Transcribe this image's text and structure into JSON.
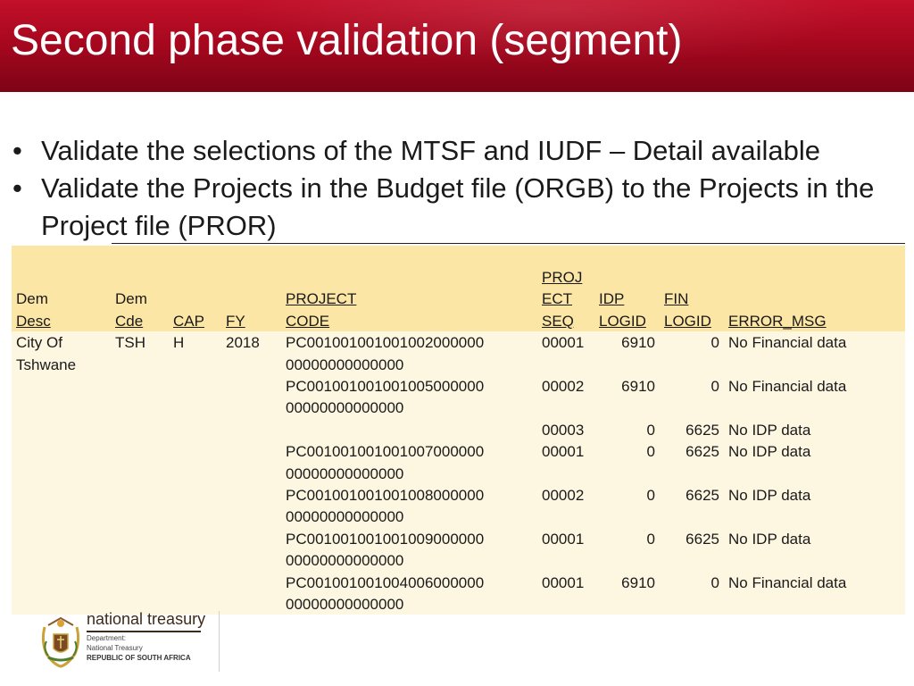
{
  "slide": {
    "title": "Second phase validation (segment)",
    "accent_color": "#a8081f"
  },
  "bullets": [
    "Validate the selections of the MTSF and IUDF – Detail available",
    "Validate the Projects in the Budget file  (ORGB) to the Projects in the Project file (PROR)"
  ],
  "bullet_glyph": "•",
  "table": {
    "header_color": "#fce6a5",
    "body_color": "#fdf6e1",
    "headers": {
      "dem_desc": [
        "Dem",
        "Desc"
      ],
      "dem_cde": [
        "Dem",
        "Cde"
      ],
      "cap": "CAP",
      "fy": "FY",
      "project_code": [
        "PROJECT",
        "CODE"
      ],
      "proj_ect_seq": [
        "PROJ",
        "ECT",
        "SEQ"
      ],
      "idp_logid": [
        "IDP",
        "LOGID"
      ],
      "fin_logid": [
        "FIN",
        "LOGID"
      ],
      "error_msg": "ERROR_MSG"
    },
    "rows": [
      {
        "dem_desc": [
          "City Of",
          "Tshwane"
        ],
        "dem_cde": "TSH",
        "cap": "H",
        "fy": "2018",
        "project_code": [
          "PC001001001001002000000",
          "00000000000000"
        ],
        "seq": "00001",
        "idp_logid": "6910",
        "fin_logid": "0",
        "error_msg": "No Financial data"
      },
      {
        "dem_desc": [
          "",
          ""
        ],
        "dem_cde": "",
        "cap": "",
        "fy": "",
        "project_code": [
          "PC001001001001005000000",
          "00000000000000"
        ],
        "seq": "00002",
        "idp_logid": "6910",
        "fin_logid": "0",
        "error_msg": "No Financial data"
      },
      {
        "dem_desc": [
          "",
          ""
        ],
        "dem_cde": "",
        "cap": "",
        "fy": "",
        "project_code": [
          "",
          ""
        ],
        "seq": "00003",
        "idp_logid": "0",
        "fin_logid": "6625",
        "error_msg": "No IDP data"
      },
      {
        "dem_desc": [
          "",
          ""
        ],
        "dem_cde": "",
        "cap": "",
        "fy": "",
        "project_code": [
          "PC001001001001007000000",
          "00000000000000"
        ],
        "seq": "00001",
        "idp_logid": "0",
        "fin_logid": "6625",
        "error_msg": "No IDP data"
      },
      {
        "dem_desc": [
          "",
          ""
        ],
        "dem_cde": "",
        "cap": "",
        "fy": "",
        "project_code": [
          "PC001001001001008000000",
          "00000000000000"
        ],
        "seq": "00002",
        "idp_logid": "0",
        "fin_logid": "6625",
        "error_msg": "No IDP data"
      },
      {
        "dem_desc": [
          "",
          ""
        ],
        "dem_cde": "",
        "cap": "",
        "fy": "",
        "project_code": [
          "PC001001001001009000000",
          "00000000000000"
        ],
        "seq": "00001",
        "idp_logid": "0",
        "fin_logid": "6625",
        "error_msg": "No IDP data"
      },
      {
        "dem_desc": [
          "",
          ""
        ],
        "dem_cde": "",
        "cap": "",
        "fy": "",
        "project_code": [
          "PC001001001004006000000",
          "00000000000000"
        ],
        "seq": "00001",
        "idp_logid": "6910",
        "fin_logid": "0",
        "error_msg": "No Financial data"
      }
    ]
  },
  "logo": {
    "brand": "national treasury",
    "line1": "Department:",
    "line2": "National Treasury",
    "line3": "REPUBLIC OF SOUTH AFRICA"
  }
}
